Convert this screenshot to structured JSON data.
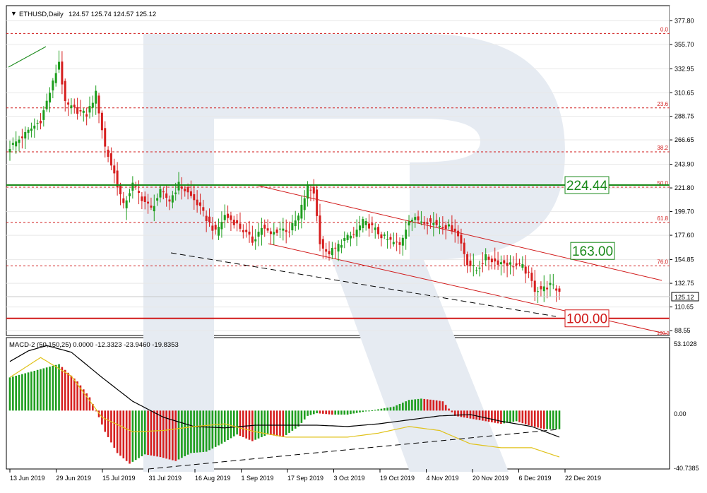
{
  "header": {
    "symbol_caret": "▼",
    "title": "ETHUSD,Daily",
    "ohlc": "124.57 125.74 124.57 125.12"
  },
  "price_axis_ticks": [
    "377.80",
    "355.70",
    "332.95",
    "310.65",
    "288.75",
    "266.65",
    "243.90",
    "221.80",
    "199.70",
    "177.60",
    "154.85",
    "132.75",
    "110.65",
    "88.55"
  ],
  "current_price_label": "125.12",
  "fib_levels": [
    {
      "label": "0.0",
      "price": 366.0
    },
    {
      "label": "23.6",
      "price": 296.5
    },
    {
      "label": "38.2",
      "price": 255.5
    },
    {
      "label": "50.0",
      "price": 222.5
    },
    {
      "label": "61.8",
      "price": 189.5
    },
    {
      "label": "76.0",
      "price": 149.0
    },
    {
      "label": "100.0",
      "price": 82.0
    }
  ],
  "key_levels": [
    {
      "label": "224.44",
      "price": 224.44,
      "color": "#1a8a1a"
    },
    {
      "label": "163.00",
      "price": 163.0,
      "color": "#1a8a1a"
    },
    {
      "label": "100.00",
      "price": 100.0,
      "color": "#d11a1a"
    }
  ],
  "macd": {
    "title": "MACD-2 (50,150,25) 0.0000 -12.3323 -23.9460 -19.8353",
    "axis_top": "53.1028",
    "axis_zero": "0.00",
    "axis_bottom": "-40.7385"
  },
  "date_labels": [
    "13 Jun 2019",
    "29 Jun 2019",
    "15 Jul 2019",
    "31 Jul 2019",
    "16 Aug 2019",
    "1 Sep 2019",
    "17 Sep 2019",
    "3 Oct 2019",
    "19 Oct 2019",
    "4 Nov 2019",
    "20 Nov 2019",
    "6 Dec 2019",
    "22 Dec 2019"
  ],
  "colors": {
    "up": "#1e9e1e",
    "down": "#d61f1f",
    "fib": "#d11a1a",
    "grid": "#e8e8e8",
    "watermark": "#e6ebf2"
  },
  "chart_data": {
    "type": "candlestick",
    "title": "ETHUSD,Daily",
    "x_start": "2019-06-07",
    "close_anchors": [
      [
        0,
        260
      ],
      [
        5,
        272
      ],
      [
        10,
        285
      ],
      [
        14,
        320
      ],
      [
        16,
        340
      ],
      [
        18,
        300
      ],
      [
        21,
        295
      ],
      [
        25,
        290
      ],
      [
        28,
        310
      ],
      [
        31,
        260
      ],
      [
        34,
        235
      ],
      [
        37,
        205
      ],
      [
        40,
        225
      ],
      [
        43,
        212
      ],
      [
        46,
        202
      ],
      [
        49,
        218
      ],
      [
        52,
        210
      ],
      [
        55,
        225
      ],
      [
        58,
        217
      ],
      [
        61,
        207
      ],
      [
        64,
        193
      ],
      [
        67,
        180
      ],
      [
        70,
        196
      ],
      [
        73,
        190
      ],
      [
        76,
        182
      ],
      [
        79,
        172
      ],
      [
        82,
        185
      ],
      [
        85,
        178
      ],
      [
        88,
        184
      ],
      [
        91,
        182
      ],
      [
        94,
        195
      ],
      [
        97,
        222
      ],
      [
        99,
        218
      ],
      [
        101,
        172
      ],
      [
        103,
        160
      ],
      [
        106,
        165
      ],
      [
        109,
        174
      ],
      [
        112,
        178
      ],
      [
        115,
        190
      ],
      [
        118,
        185
      ],
      [
        121,
        177
      ],
      [
        124,
        172
      ],
      [
        127,
        168
      ],
      [
        130,
        193
      ],
      [
        133,
        192
      ],
      [
        136,
        191
      ],
      [
        139,
        188
      ],
      [
        142,
        186
      ],
      [
        145,
        183
      ],
      [
        147,
        170
      ],
      [
        149,
        152
      ],
      [
        152,
        145
      ],
      [
        155,
        157
      ],
      [
        158,
        153
      ],
      [
        161,
        152
      ],
      [
        164,
        150
      ],
      [
        167,
        148
      ],
      [
        169,
        140
      ],
      [
        171,
        127
      ],
      [
        174,
        128
      ],
      [
        176,
        131
      ],
      [
        179,
        125
      ]
    ],
    "macd_anchors": [
      [
        0,
        25
      ],
      [
        8,
        30
      ],
      [
        16,
        35
      ],
      [
        22,
        22
      ],
      [
        26,
        10
      ],
      [
        29,
        -5
      ],
      [
        31,
        -16
      ],
      [
        35,
        -32
      ],
      [
        39,
        -40
      ],
      [
        44,
        -33
      ],
      [
        49,
        -35
      ],
      [
        54,
        -38
      ],
      [
        59,
        -32
      ],
      [
        64,
        -31
      ],
      [
        69,
        -25
      ],
      [
        74,
        -18
      ],
      [
        79,
        -23
      ],
      [
        84,
        -18
      ],
      [
        89,
        -20
      ],
      [
        94,
        -12
      ],
      [
        97,
        -4
      ],
      [
        100,
        -2
      ],
      [
        105,
        -3
      ],
      [
        110,
        -3
      ],
      [
        115,
        -1
      ],
      [
        120,
        1
      ],
      [
        125,
        3
      ],
      [
        130,
        8
      ],
      [
        134,
        9
      ],
      [
        138,
        8
      ],
      [
        141,
        7
      ],
      [
        145,
        -4
      ],
      [
        150,
        -6
      ],
      [
        155,
        -8
      ],
      [
        160,
        -10
      ],
      [
        165,
        -8
      ],
      [
        169,
        -11
      ],
      [
        174,
        -14
      ],
      [
        179,
        -14
      ]
    ],
    "signal_anchors": [
      [
        0,
        37
      ],
      [
        6,
        45
      ],
      [
        12,
        49
      ],
      [
        20,
        44
      ],
      [
        30,
        25
      ],
      [
        40,
        7
      ],
      [
        50,
        -5
      ],
      [
        60,
        -12
      ],
      [
        70,
        -13
      ],
      [
        80,
        -11
      ],
      [
        90,
        -11
      ],
      [
        100,
        -11
      ],
      [
        110,
        -12
      ],
      [
        120,
        -10
      ],
      [
        130,
        -7
      ],
      [
        140,
        -4
      ],
      [
        150,
        -3
      ],
      [
        160,
        -8
      ],
      [
        170,
        -12
      ],
      [
        179,
        -20
      ]
    ],
    "slow_signal_anchors": [
      [
        0,
        25
      ],
      [
        10,
        40
      ],
      [
        20,
        26
      ],
      [
        30,
        -5
      ],
      [
        40,
        -16
      ],
      [
        50,
        -15
      ],
      [
        60,
        -12
      ],
      [
        70,
        -10
      ],
      [
        80,
        -16
      ],
      [
        90,
        -20
      ],
      [
        100,
        -20
      ],
      [
        110,
        -20
      ],
      [
        120,
        -17
      ],
      [
        130,
        -12
      ],
      [
        140,
        -15
      ],
      [
        150,
        -25
      ],
      [
        160,
        -28
      ],
      [
        170,
        -28
      ],
      [
        179,
        -35
      ]
    ],
    "y_range": [
      84,
      392
    ],
    "macd_range": [
      -44,
      55
    ]
  }
}
